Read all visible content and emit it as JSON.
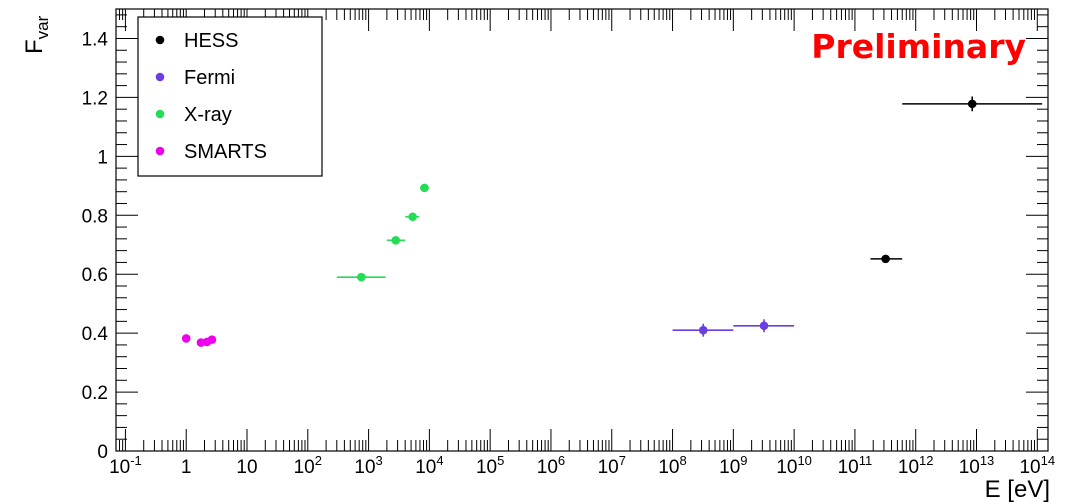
{
  "chart_data": {
    "type": "scatter",
    "xscale": "log",
    "xlim": [
      0.07,
      150000000000000
    ],
    "ylim": [
      0,
      1.5
    ],
    "xlabel": "E [eV]",
    "ylabel": "F",
    "ylabel_sub": "var",
    "annotation": "Preliminary",
    "annotation_color": "#ff0000",
    "legend_position": "top-left",
    "y_ticks": [
      "0",
      "0.2",
      "0.4",
      "0.6",
      "0.8",
      "1",
      "1.2",
      "1.4"
    ],
    "x_ticks": [
      {
        "base": "10",
        "exp": "-1"
      },
      {
        "base": "1",
        "exp": ""
      },
      {
        "base": "10",
        "exp": ""
      },
      {
        "base": "10",
        "exp": "2"
      },
      {
        "base": "10",
        "exp": "3"
      },
      {
        "base": "10",
        "exp": "4"
      },
      {
        "base": "10",
        "exp": "5"
      },
      {
        "base": "10",
        "exp": "6"
      },
      {
        "base": "10",
        "exp": "7"
      },
      {
        "base": "10",
        "exp": "8"
      },
      {
        "base": "10",
        "exp": "9"
      },
      {
        "base": "10",
        "exp": "10"
      },
      {
        "base": "10",
        "exp": "11"
      },
      {
        "base": "10",
        "exp": "12"
      },
      {
        "base": "10",
        "exp": "13"
      },
      {
        "base": "10",
        "exp": "14"
      }
    ],
    "series": [
      {
        "name": "HESS",
        "color": "#000000",
        "points": [
          {
            "x": 320000000000.0,
            "y": 0.652,
            "xlo": 180000000000.0,
            "xhi": 600000000000.0,
            "yerr": 0.008
          },
          {
            "x": 8500000000000.0,
            "y": 1.178,
            "xlo": 600000000000.0,
            "xhi": 120000000000000.0,
            "yerr": 0.025
          }
        ]
      },
      {
        "name": "Fermi",
        "color": "#6a3ee0",
        "points": [
          {
            "x": 320000000.0,
            "y": 0.41,
            "xlo": 100000000.0,
            "xhi": 1000000000.0,
            "yerr": 0.022
          },
          {
            "x": 3200000000.0,
            "y": 0.425,
            "xlo": 1000000000.0,
            "xhi": 10000000000.0,
            "yerr": 0.022
          }
        ]
      },
      {
        "name": "X-ray",
        "color": "#22dd55",
        "points": [
          {
            "x": 760,
            "y": 0.59,
            "xlo": 300,
            "xhi": 1900,
            "yerr": 0.005
          },
          {
            "x": 2800,
            "y": 0.715,
            "xlo": 2000,
            "xhi": 4000,
            "yerr": 0.005
          },
          {
            "x": 5300,
            "y": 0.795,
            "xlo": 4000,
            "xhi": 6800,
            "yerr": 0.005
          },
          {
            "x": 8300,
            "y": 0.893,
            "xlo": 7000,
            "xhi": 9800,
            "yerr": 0.005
          }
        ]
      },
      {
        "name": "SMARTS",
        "color": "#ee00ee",
        "points": [
          {
            "x": 1.0,
            "y": 0.382
          },
          {
            "x": 1.75,
            "y": 0.368
          },
          {
            "x": 2.2,
            "y": 0.37
          },
          {
            "x": 2.65,
            "y": 0.378
          }
        ]
      }
    ]
  }
}
